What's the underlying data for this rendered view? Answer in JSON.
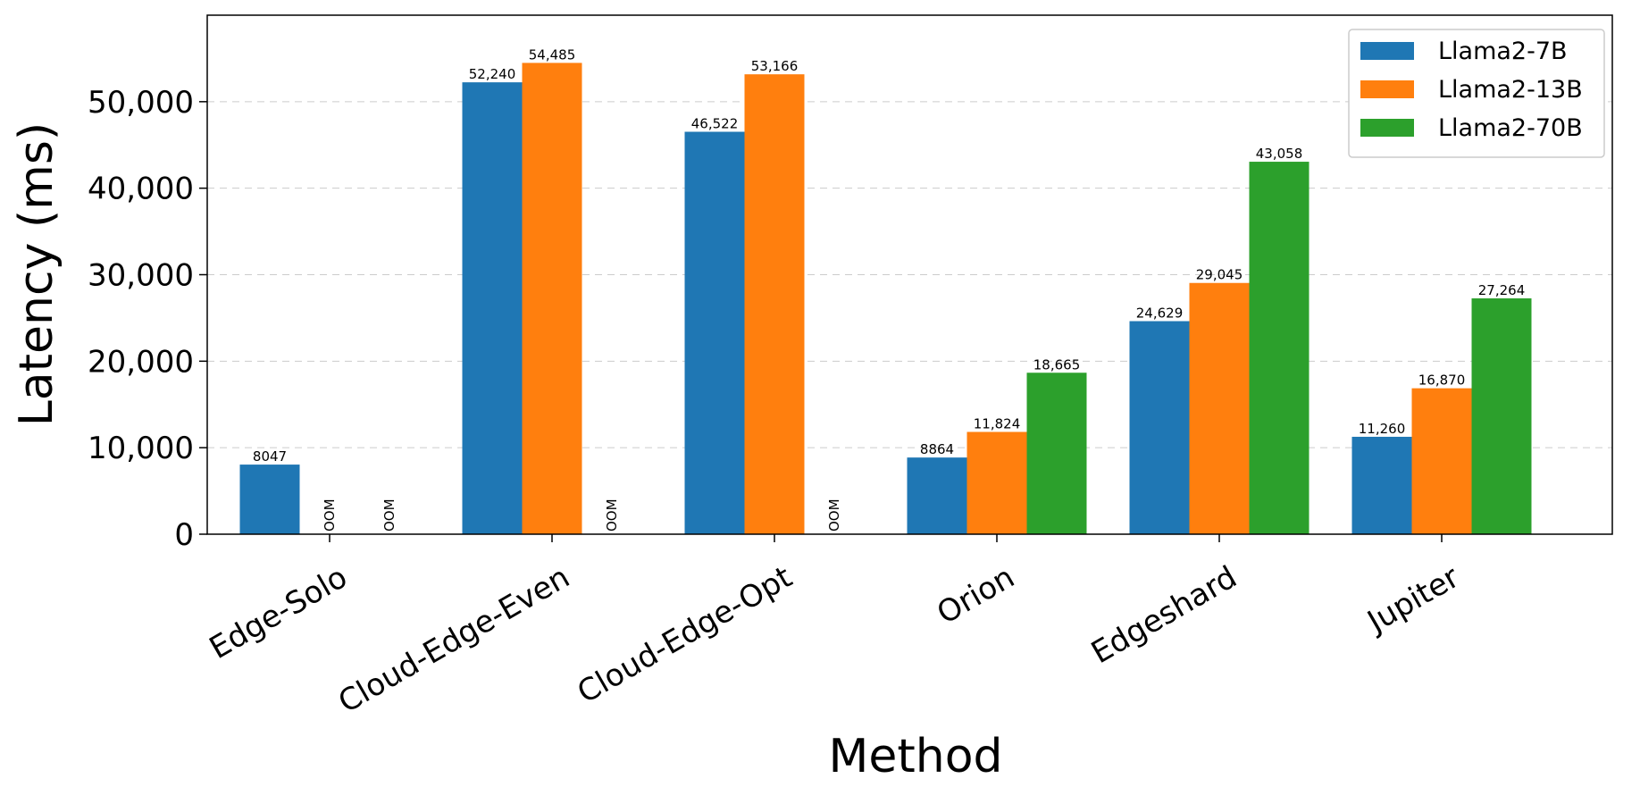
{
  "chart_data": {
    "type": "bar",
    "title": "",
    "xlabel": "Method",
    "ylabel": "Latency (ms)",
    "categories": [
      "Edge-Solo",
      "Cloud-Edge-Even",
      "Cloud-Edge-Opt",
      "Orion",
      "Edgeshard",
      "Jupiter"
    ],
    "series": [
      {
        "name": "Llama2-7B",
        "color": "#1f77b4",
        "values": [
          8047,
          52240,
          46522,
          8864,
          24629,
          11260
        ],
        "labels": [
          "8047",
          "52,240",
          "46,522",
          "8864",
          "24,629",
          "11,260"
        ]
      },
      {
        "name": "Llama2-13B",
        "color": "#ff7f0e",
        "values": [
          0,
          54485,
          53166,
          11824,
          29045,
          16870
        ],
        "labels": [
          "OOM",
          "54,485",
          "53,166",
          "11,824",
          "29,045",
          "16,870"
        ]
      },
      {
        "name": "Llama2-70B",
        "color": "#2ca02c",
        "values": [
          0,
          0,
          0,
          18665,
          43058,
          27264
        ],
        "labels": [
          "OOM",
          "OOM",
          "OOM",
          "18,665",
          "43,058",
          "27,264"
        ]
      }
    ],
    "ylim": [
      0,
      60000
    ],
    "yticks": [
      0,
      10000,
      20000,
      30000,
      40000,
      50000
    ],
    "ytick_labels": [
      "0",
      "10,000",
      "20,000",
      "30,000",
      "40,000",
      "50,000"
    ],
    "grid": true,
    "legend_position": "top-right"
  }
}
